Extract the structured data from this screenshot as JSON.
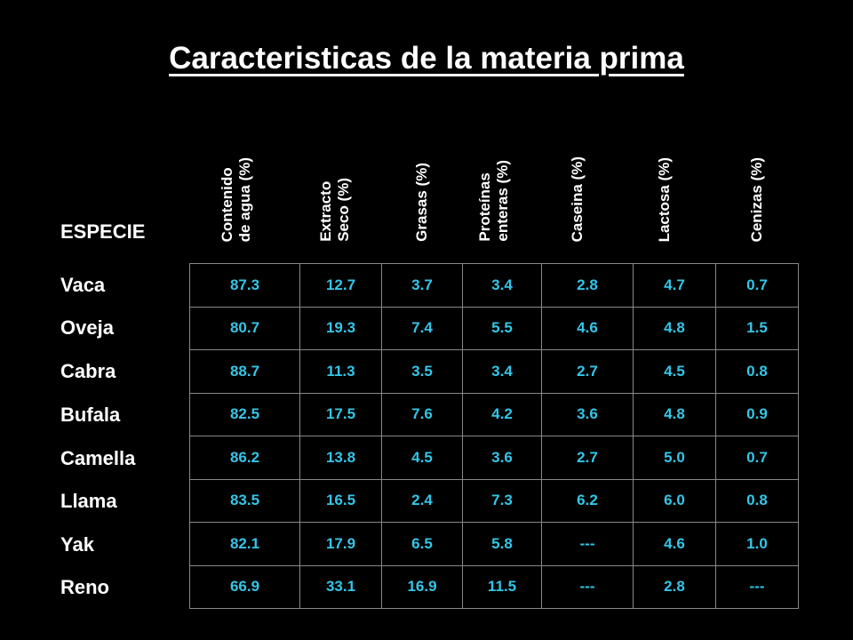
{
  "title": "Caracteristicas de la materia prima",
  "row_header": "ESPECIE",
  "columns": [
    "Contenido\nde agua (%)",
    "Extracto\nSeco (%)",
    "Grasas (%)",
    "Proteínas\nenteras (%)",
    "Caseina (%)",
    "Lactosa (%)",
    "Cenizas (%)"
  ],
  "rows": [
    {
      "species": "Vaca",
      "values": [
        "87.3",
        "12.7",
        "3.7",
        "3.4",
        "2.8",
        "4.7",
        "0.7"
      ]
    },
    {
      "species": "Oveja",
      "values": [
        "80.7",
        "19.3",
        "7.4",
        "5.5",
        "4.6",
        "4.8",
        "1.5"
      ]
    },
    {
      "species": "Cabra",
      "values": [
        "88.7",
        "11.3",
        "3.5",
        "3.4",
        "2.7",
        "4.5",
        "0.8"
      ]
    },
    {
      "species": "Bufala",
      "values": [
        "82.5",
        "17.5",
        "7.6",
        "4.2",
        "3.6",
        "4.8",
        "0.9"
      ]
    },
    {
      "species": "Camella",
      "values": [
        "86.2",
        "13.8",
        "4.5",
        "3.6",
        "2.7",
        "5.0",
        "0.7"
      ]
    },
    {
      "species": "Llama",
      "values": [
        "83.5",
        "16.5",
        "2.4",
        "7.3",
        "6.2",
        "6.0",
        "0.8"
      ]
    },
    {
      "species": "Yak",
      "values": [
        "82.1",
        "17.9",
        "6.5",
        "5.8",
        "---",
        "4.6",
        "1.0"
      ]
    },
    {
      "species": "Reno",
      "values": [
        "66.9",
        "33.1",
        "16.9",
        "11.5",
        "---",
        "2.8",
        "---"
      ]
    }
  ]
}
